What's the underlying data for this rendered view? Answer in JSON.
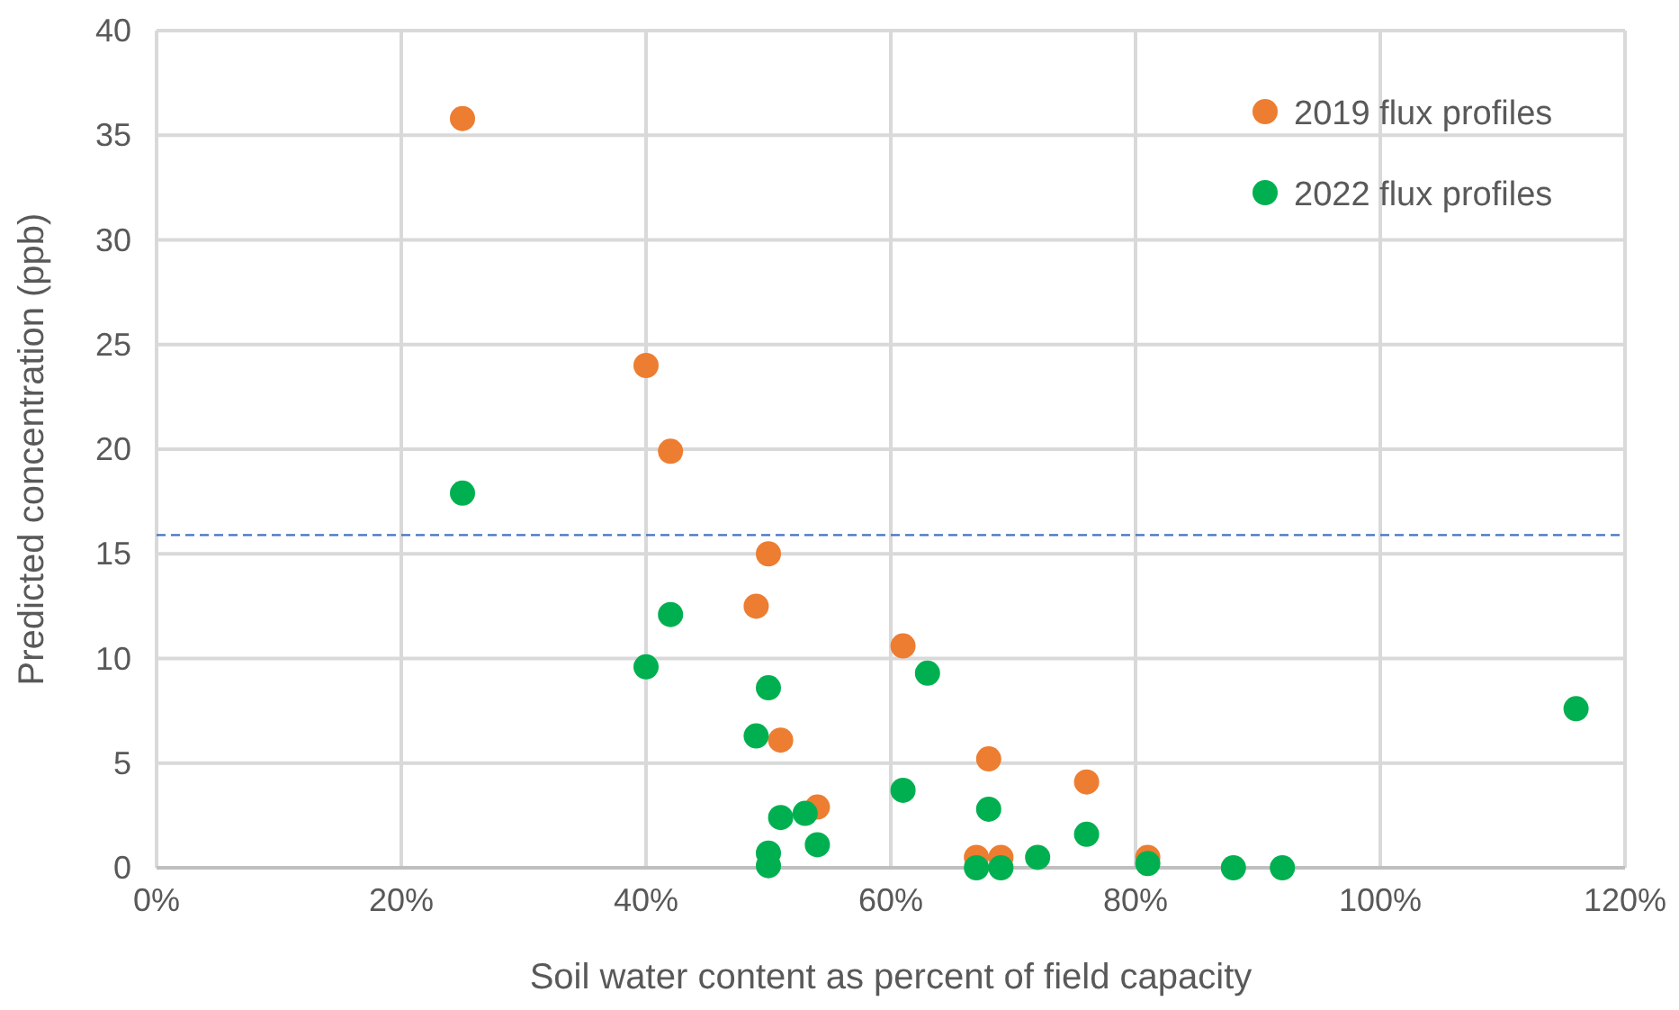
{
  "chart_data": {
    "type": "scatter",
    "xlabel": "Soil water content as percent of field capacity",
    "ylabel": "Predicted concentration (ppb)",
    "xlim": [
      0,
      120
    ],
    "xticks": [
      {
        "value": 0,
        "label": "0%"
      },
      {
        "value": 20,
        "label": "20%"
      },
      {
        "value": 40,
        "label": "40%"
      },
      {
        "value": 60,
        "label": "60%"
      },
      {
        "value": 80,
        "label": "80%"
      },
      {
        "value": 100,
        "label": "100%"
      },
      {
        "value": 120,
        "label": "120%"
      }
    ],
    "ylim": [
      0,
      40
    ],
    "yticks": [
      0,
      5,
      10,
      15,
      20,
      25,
      30,
      35,
      40
    ],
    "grid": true,
    "legend": "top right",
    "marker": "circle",
    "ref_lines": [
      {
        "axis": "y",
        "value": 15.9,
        "color": "#4472c4",
        "line_style": "dashed"
      }
    ],
    "series": [
      {
        "name": "2019 flux profiles",
        "color": "#ed7d31",
        "x": [
          25,
          40,
          42,
          50,
          49,
          61,
          51,
          54,
          68,
          76,
          67,
          69,
          81
        ],
        "values": [
          35.8,
          24,
          19.9,
          15,
          12.5,
          10.6,
          6.1,
          2.9,
          5.2,
          4.1,
          0.5,
          0.5,
          0.5
        ]
      },
      {
        "name": "2022 flux profiles",
        "color": "#00b050",
        "x": [
          25,
          42,
          40,
          50,
          63,
          49,
          53,
          51,
          61,
          68,
          76,
          50,
          50,
          54,
          67,
          69,
          72,
          81,
          88,
          92,
          116
        ],
        "values": [
          17.9,
          12.1,
          9.6,
          8.6,
          9.3,
          6.3,
          2.6,
          2.4,
          3.7,
          2.8,
          1.6,
          0.7,
          0.1,
          1.1,
          0,
          0,
          0.5,
          0.2,
          0,
          0,
          7.6
        ]
      }
    ]
  }
}
